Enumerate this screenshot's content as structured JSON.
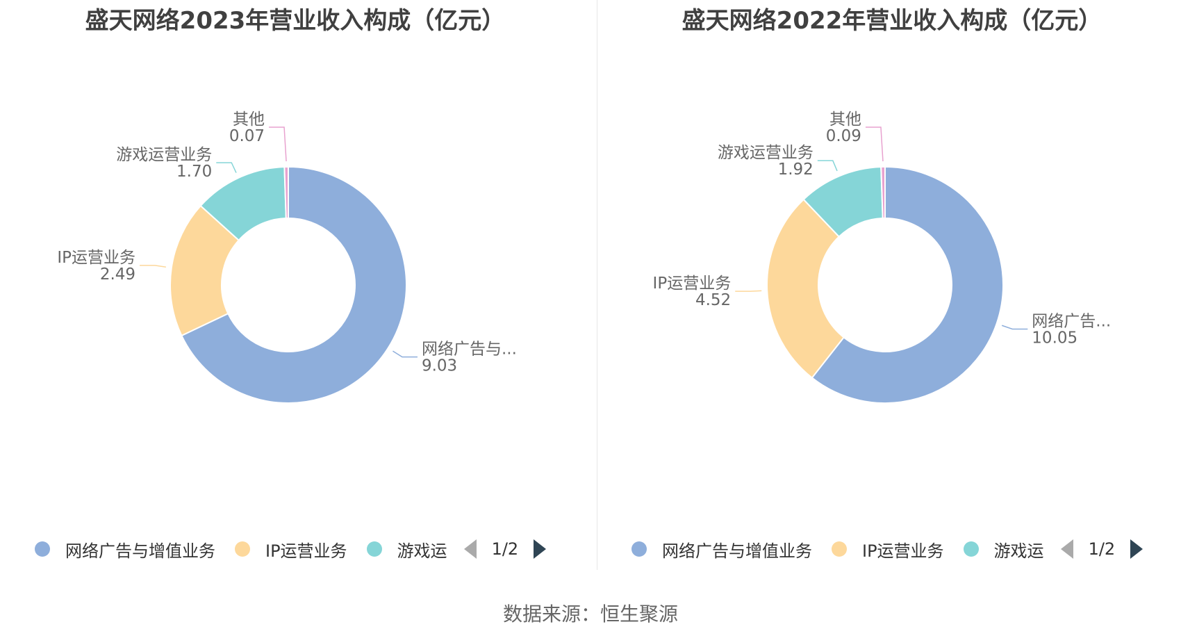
{
  "source": "数据来源：恒生聚源",
  "legend_full": {
    "items": [
      {
        "label": "网络广告与增值业务",
        "color": "#8eaedb"
      },
      {
        "label": "IP运营业务",
        "color": "#fdd89b"
      },
      {
        "label": "游戏运",
        "color": "#85d5d7"
      }
    ],
    "page": "1/2"
  },
  "chart_data": [
    {
      "type": "pie",
      "title": "盛天网络2023年营业收入构成（亿元）",
      "donut": true,
      "slices": [
        {
          "label": "网络广告与...",
          "value": 9.03,
          "value_text": "9.03",
          "color": "#8eaedb"
        },
        {
          "label": "IP运营业务",
          "value": 2.49,
          "value_text": "2.49",
          "color": "#fdd89b"
        },
        {
          "label": "游戏运营业务",
          "value": 1.7,
          "value_text": "1.70",
          "color": "#85d5d7"
        },
        {
          "label": "其他",
          "value": 0.07,
          "value_text": "0.07",
          "color": "#e8a2cf"
        }
      ],
      "legend": {
        "items": [
          "网络广告与增值业务",
          "IP运营业务",
          "游戏运"
        ],
        "colors": [
          "#8eaedb",
          "#fdd89b",
          "#85d5d7"
        ],
        "page": "1/2",
        "placement": "bottom"
      }
    },
    {
      "type": "pie",
      "title": "盛天网络2022年营业收入构成（亿元）",
      "donut": true,
      "slices": [
        {
          "label": "网络广告...",
          "value": 10.05,
          "value_text": "10.05",
          "color": "#8eaedb"
        },
        {
          "label": "IP运营业务",
          "value": 4.52,
          "value_text": "4.52",
          "color": "#fdd89b"
        },
        {
          "label": "游戏运营业务",
          "value": 1.92,
          "value_text": "1.92",
          "color": "#85d5d7"
        },
        {
          "label": "其他",
          "value": 0.09,
          "value_text": "0.09",
          "color": "#e8a2cf"
        }
      ],
      "legend": {
        "items": [
          "网络广告与增值业务",
          "IP运营业务",
          "游戏运"
        ],
        "colors": [
          "#8eaedb",
          "#fdd89b",
          "#85d5d7"
        ],
        "page": "1/2",
        "placement": "bottom"
      }
    }
  ]
}
